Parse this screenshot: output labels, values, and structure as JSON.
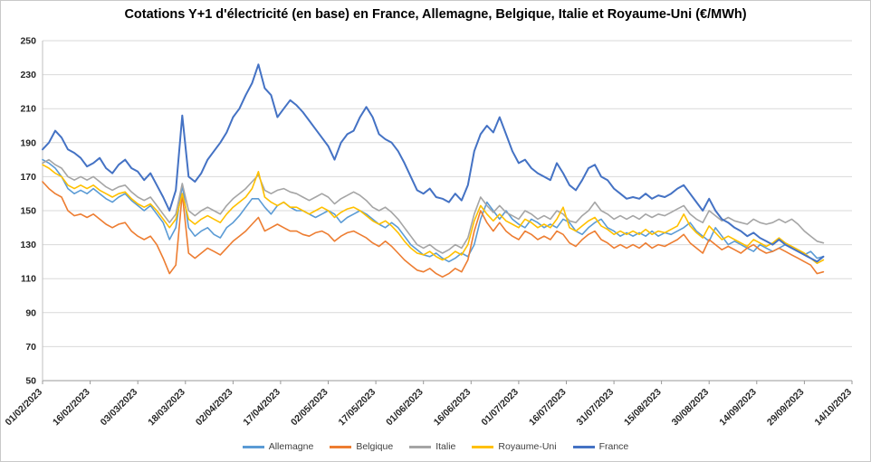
{
  "chart_data": {
    "type": "line",
    "title": "Cotations Y+1 d'électricité (en base) en France, Allemagne, Belgique, Italie et Royaume-Uni (€/MWh)",
    "xlabel": "",
    "ylabel": "",
    "ylim": [
      50,
      250
    ],
    "ytick_step": 20,
    "y_tick_labels": [
      50,
      70,
      90,
      110,
      130,
      150,
      170,
      190,
      210,
      230,
      250
    ],
    "grid": "horizontal",
    "legend_position": "bottom",
    "x_total_days": 255,
    "xtick_interval_days": 15,
    "sample_interval_days": 2,
    "x_tick_labels": [
      "01/02/2023",
      "16/02/2023",
      "03/03/2023",
      "18/03/2023",
      "02/04/2023",
      "17/04/2023",
      "02/05/2023",
      "17/05/2023",
      "01/06/2023",
      "16/06/2023",
      "01/07/2023",
      "16/07/2023",
      "31/07/2023",
      "15/08/2023",
      "30/08/2023",
      "14/09/2023",
      "29/09/2023",
      "14/10/2023"
    ],
    "series": [
      {
        "id": "allemagne",
        "name": "Allemagne",
        "color": "#5B9BD5",
        "values": [
          180,
          178,
          175,
          170,
          163,
          160,
          162,
          160,
          163,
          160,
          157,
          155,
          158,
          160,
          156,
          153,
          150,
          153,
          148,
          143,
          133,
          140,
          165,
          140,
          135,
          138,
          140,
          136,
          134,
          140,
          143,
          147,
          152,
          157,
          157,
          152,
          148,
          153,
          155,
          152,
          150,
          150,
          148,
          146,
          148,
          150,
          148,
          143,
          146,
          148,
          150,
          148,
          145,
          142,
          140,
          143,
          140,
          135,
          130,
          127,
          124,
          123,
          125,
          122,
          120,
          122,
          125,
          123,
          130,
          145,
          155,
          150,
          145,
          150,
          145,
          142,
          140,
          145,
          143,
          140,
          142,
          140,
          145,
          143,
          138,
          136,
          140,
          143,
          145,
          140,
          138,
          135,
          137,
          135,
          137,
          135,
          138,
          135,
          137,
          136,
          138,
          140,
          143,
          138,
          135,
          132,
          140,
          135,
          130,
          132,
          130,
          128,
          126,
          130,
          128,
          126,
          128,
          130,
          128,
          126,
          124,
          126,
          122,
          123
        ]
      },
      {
        "id": "belgique",
        "name": "Belgique",
        "color": "#ED7D31",
        "values": [
          167,
          163,
          160,
          158,
          150,
          147,
          148,
          146,
          148,
          145,
          142,
          140,
          142,
          143,
          138,
          135,
          133,
          135,
          130,
          122,
          113,
          118,
          160,
          125,
          122,
          125,
          128,
          126,
          124,
          128,
          132,
          135,
          138,
          142,
          146,
          138,
          140,
          142,
          140,
          138,
          138,
          136,
          135,
          137,
          138,
          136,
          132,
          135,
          137,
          138,
          136,
          134,
          131,
          129,
          132,
          129,
          125,
          121,
          118,
          115,
          114,
          116,
          113,
          111,
          113,
          116,
          114,
          121,
          138,
          150,
          143,
          138,
          143,
          138,
          135,
          133,
          138,
          136,
          133,
          135,
          133,
          138,
          136,
          131,
          129,
          133,
          136,
          138,
          133,
          131,
          128,
          130,
          128,
          130,
          128,
          131,
          128,
          130,
          129,
          131,
          133,
          136,
          131,
          128,
          125,
          133,
          130,
          127,
          129,
          127,
          125,
          128,
          130,
          127,
          125,
          126,
          128,
          126,
          124,
          122,
          120,
          118,
          113,
          114
        ]
      },
      {
        "id": "italie",
        "name": "Italie",
        "color": "#A5A5A5",
        "values": [
          178,
          180,
          177,
          175,
          170,
          168,
          170,
          168,
          170,
          167,
          164,
          162,
          164,
          165,
          161,
          158,
          156,
          158,
          153,
          148,
          143,
          148,
          166,
          150,
          147,
          150,
          152,
          150,
          148,
          153,
          157,
          160,
          163,
          167,
          171,
          162,
          160,
          162,
          163,
          161,
          160,
          158,
          156,
          158,
          160,
          158,
          154,
          157,
          159,
          161,
          159,
          156,
          152,
          150,
          152,
          149,
          145,
          140,
          135,
          130,
          128,
          130,
          127,
          125,
          127,
          130,
          128,
          134,
          148,
          158,
          153,
          149,
          153,
          149,
          147,
          145,
          150,
          148,
          145,
          147,
          145,
          150,
          148,
          144,
          143,
          147,
          150,
          155,
          150,
          148,
          145,
          147,
          145,
          147,
          145,
          148,
          146,
          148,
          147,
          149,
          151,
          153,
          148,
          145,
          143,
          150,
          147,
          144,
          146,
          144,
          143,
          142,
          145,
          143,
          142,
          143,
          145,
          143,
          145,
          142,
          138,
          135,
          132,
          131
        ]
      },
      {
        "id": "royaume-uni",
        "name": "Royaume-Uni",
        "color": "#FFC000",
        "values": [
          177,
          175,
          172,
          170,
          165,
          163,
          165,
          163,
          165,
          162,
          160,
          158,
          160,
          161,
          157,
          154,
          152,
          154,
          150,
          145,
          140,
          145,
          160,
          145,
          142,
          145,
          147,
          145,
          143,
          148,
          152,
          155,
          158,
          163,
          173,
          158,
          155,
          153,
          155,
          152,
          152,
          150,
          148,
          150,
          152,
          150,
          146,
          149,
          151,
          152,
          150,
          147,
          144,
          142,
          144,
          141,
          137,
          132,
          128,
          125,
          124,
          126,
          123,
          121,
          123,
          126,
          124,
          130,
          144,
          153,
          148,
          144,
          148,
          144,
          142,
          140,
          145,
          143,
          140,
          142,
          140,
          145,
          152,
          140,
          138,
          141,
          144,
          146,
          141,
          139,
          136,
          138,
          136,
          138,
          136,
          139,
          136,
          138,
          137,
          139,
          141,
          148,
          141,
          137,
          134,
          141,
          137,
          133,
          135,
          133,
          131,
          129,
          133,
          131,
          129,
          131,
          134,
          131,
          129,
          127,
          125,
          122,
          119,
          121
        ]
      },
      {
        "id": "france",
        "name": "France",
        "color": "#4472C4",
        "values": [
          186,
          190,
          197,
          193,
          186,
          184,
          181,
          176,
          178,
          181,
          175,
          172,
          177,
          180,
          175,
          173,
          168,
          172,
          165,
          158,
          150,
          162,
          206,
          170,
          167,
          172,
          180,
          185,
          190,
          196,
          205,
          210,
          218,
          225,
          236,
          222,
          218,
          205,
          210,
          215,
          212,
          208,
          203,
          198,
          193,
          188,
          180,
          190,
          195,
          197,
          205,
          211,
          205,
          195,
          192,
          190,
          185,
          178,
          170,
          162,
          160,
          163,
          158,
          157,
          155,
          160,
          156,
          165,
          185,
          195,
          200,
          196,
          205,
          195,
          185,
          178,
          180,
          175,
          172,
          170,
          168,
          178,
          172,
          165,
          162,
          168,
          175,
          177,
          170,
          168,
          163,
          160,
          157,
          158,
          157,
          160,
          157,
          159,
          158,
          160,
          163,
          165,
          160,
          155,
          150,
          157,
          150,
          145,
          143,
          140,
          138,
          135,
          137,
          134,
          132,
          130,
          133,
          130,
          128,
          126,
          124,
          122,
          120,
          123
        ]
      }
    ]
  }
}
